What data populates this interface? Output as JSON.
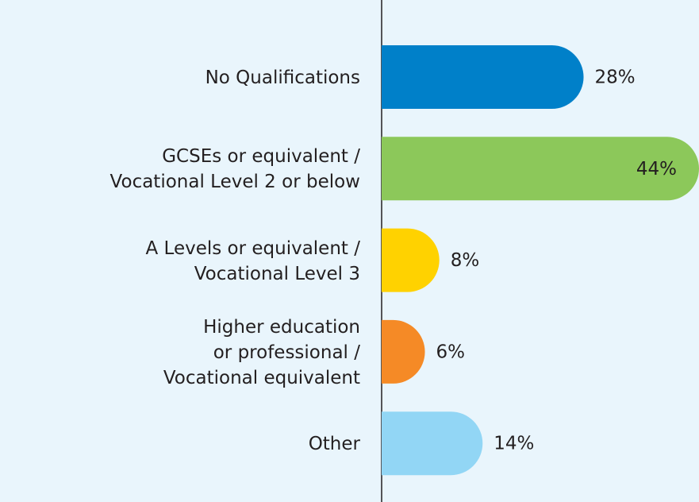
{
  "chart_data": {
    "type": "bar",
    "orientation": "horizontal",
    "categories": [
      "No Qualifications",
      "GCSEs or equivalent /\nVocational Level 2 or below",
      "A Levels or equivalent /\nVocational Level 3",
      "Higher education\nor professional /\nVocational equivalent",
      "Other"
    ],
    "values": [
      28,
      44,
      8,
      6,
      14
    ],
    "value_labels": [
      "28%",
      "44%",
      "8%",
      "6%",
      "14%"
    ],
    "colors": [
      "#0080c9",
      "#8cc85a",
      "#ffd200",
      "#f58a26",
      "#92d6f5"
    ]
  }
}
